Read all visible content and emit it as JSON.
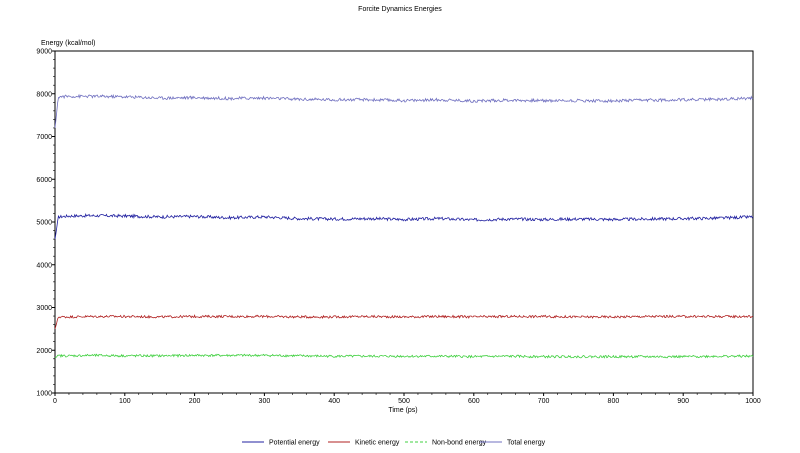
{
  "chart_data": {
    "type": "line",
    "title": "Forcite Dynamics Energies",
    "ylabel": "Energy (kcal/mol)",
    "xlabel": "Time (ps)",
    "xlim": [
      0,
      1000
    ],
    "ylim": [
      1000,
      9000
    ],
    "x_ticks": [
      0,
      100,
      200,
      300,
      400,
      500,
      600,
      700,
      800,
      900,
      1000
    ],
    "y_ticks": [
      1000,
      2000,
      3000,
      4000,
      5000,
      6000,
      7000,
      8000,
      9000
    ],
    "grid": false,
    "legend_position": "bottom",
    "x": [
      0,
      5,
      20,
      50,
      100,
      150,
      200,
      250,
      300,
      350,
      400,
      450,
      500,
      550,
      600,
      650,
      700,
      750,
      800,
      850,
      900,
      950,
      1000
    ],
    "series": [
      {
        "name": "Potential energy",
        "color": "#2020a0",
        "values": [
          4600,
          5120,
          5140,
          5150,
          5140,
          5120,
          5130,
          5100,
          5120,
          5080,
          5070,
          5080,
          5060,
          5080,
          5050,
          5070,
          5060,
          5070,
          5060,
          5070,
          5080,
          5090,
          5120
        ]
      },
      {
        "name": "Kinetic energy",
        "color": "#b02020",
        "values": [
          2500,
          2780,
          2780,
          2790,
          2790,
          2780,
          2790,
          2790,
          2790,
          2780,
          2780,
          2790,
          2780,
          2790,
          2780,
          2790,
          2790,
          2780,
          2780,
          2790,
          2790,
          2790,
          2790
        ]
      },
      {
        "name": "Non-bond energy",
        "color": "#40d040",
        "values": [
          1820,
          1870,
          1870,
          1880,
          1870,
          1870,
          1880,
          1880,
          1880,
          1870,
          1860,
          1860,
          1860,
          1860,
          1850,
          1860,
          1850,
          1850,
          1850,
          1850,
          1850,
          1860,
          1860
        ]
      },
      {
        "name": "Total energy",
        "color": "#7070c0",
        "values": [
          7200,
          7930,
          7940,
          7940,
          7930,
          7900,
          7910,
          7890,
          7900,
          7870,
          7860,
          7860,
          7840,
          7860,
          7830,
          7850,
          7840,
          7840,
          7830,
          7850,
          7860,
          7870,
          7900
        ]
      }
    ]
  }
}
